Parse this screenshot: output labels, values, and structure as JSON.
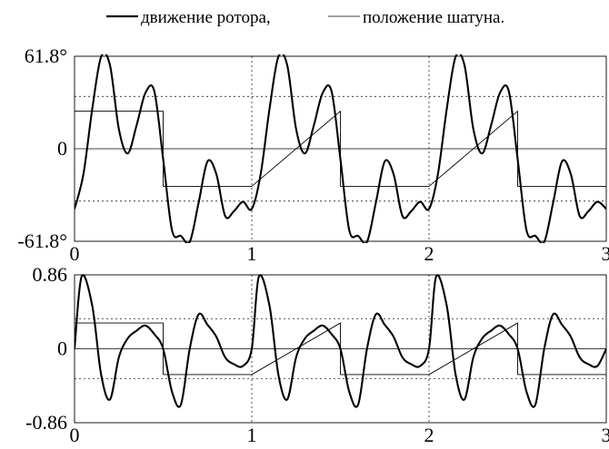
{
  "legend": [
    {
      "label": "движение ротора,",
      "style": "thick"
    },
    {
      "label": "положение шатуна.",
      "style": "thin"
    }
  ],
  "colors": {
    "ink": "#000000",
    "background": "#ffffff"
  },
  "chart_data": [
    {
      "type": "line",
      "ylim": [
        -61.8,
        61.8
      ],
      "xlim": [
        0,
        3
      ],
      "yticks": [
        "61.8°",
        "0",
        "-61.8°"
      ],
      "xticks": [
        "0",
        "1",
        "2",
        "3"
      ],
      "reference_lines": [
        35.0,
        -35.0
      ],
      "grid": "dashed vertical at x = 1, 2",
      "series": [
        {
          "style": "thick",
          "x": [
            0,
            0.05,
            0.1,
            0.15,
            0.2,
            0.25,
            0.3,
            0.35,
            0.4,
            0.45,
            0.5,
            0.55,
            0.6,
            0.65,
            0.7,
            0.75,
            0.8,
            0.85,
            0.9,
            0.95,
            1.0
          ],
          "y": [
            -40.2,
            -17.1,
            26.6,
            61.5,
            55.8,
            13.2,
            -3.1,
            15.6,
            37.3,
            38.5,
            -6.9,
            -54.5,
            -58.2,
            -62.2,
            -36.1,
            -8.5,
            -16.9,
            -44.9,
            -41.6,
            -35.4,
            -40.2
          ],
          "period": 1
        },
        {
          "style": "thin",
          "x": [
            0,
            0.5,
            0.5,
            1.0
          ],
          "y": [
            25.1,
            25.1,
            -25.1,
            -25.1
          ],
          "period": 1
        }
      ]
    },
    {
      "type": "line",
      "ylim": [
        -0.86,
        0.86
      ],
      "xlim": [
        0,
        3
      ],
      "yticks": [
        "0.86",
        "0",
        "-0.86"
      ],
      "xticks": [
        "0",
        "1",
        "2",
        "3"
      ],
      "reference_lines": [
        0.35,
        -0.35
      ],
      "grid": "dashed vertical at x = 1, 2",
      "series": [
        {
          "style": "thick",
          "x": [
            0,
            0.04,
            0.1,
            0.15,
            0.2,
            0.25,
            0.3,
            0.35,
            0.4,
            0.45,
            0.5,
            0.55,
            0.6,
            0.65,
            0.7,
            0.75,
            0.8,
            0.85,
            0.9,
            0.95,
            1.0
          ],
          "y": [
            0.0,
            0.84,
            0.5,
            -0.3,
            -0.59,
            -0.1,
            0.12,
            0.21,
            0.27,
            0.17,
            0.0,
            -0.5,
            -0.65,
            0.0,
            0.4,
            0.28,
            0.14,
            -0.1,
            -0.18,
            -0.2,
            0.0
          ],
          "period": 1
        },
        {
          "style": "thin",
          "x": [
            0,
            0.5,
            0.5,
            1.0
          ],
          "y": [
            0.3,
            0.3,
            -0.3,
            -0.3
          ],
          "period": 1
        }
      ]
    }
  ]
}
